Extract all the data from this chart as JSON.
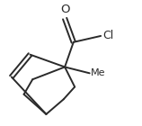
{
  "background": "#ffffff",
  "line_color": "#2a2a2a",
  "line_width": 1.4,
  "fig_width": 1.58,
  "fig_height": 1.4,
  "dpi": 100,
  "O_label": "O",
  "Cl_label": "Cl",
  "Me_label": "Me",
  "xlim": [
    0,
    1
  ],
  "ylim": [
    0,
    1
  ]
}
